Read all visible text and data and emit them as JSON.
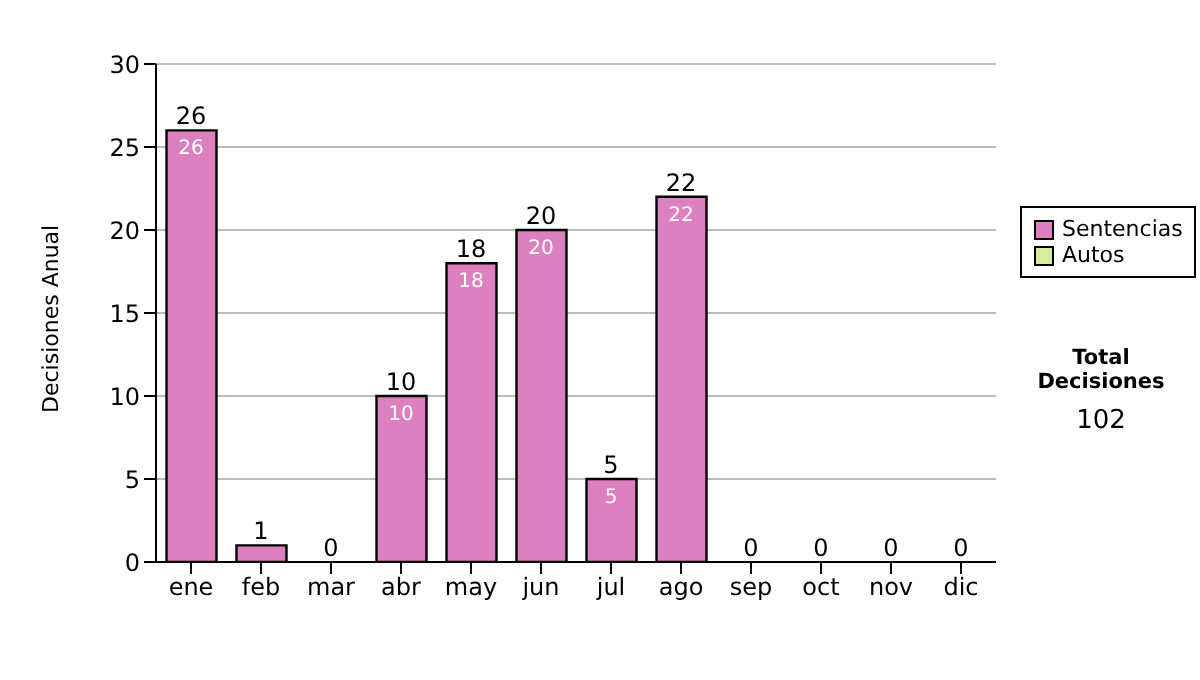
{
  "chart_data": {
    "type": "bar",
    "stacked": true,
    "ylabel": "Decisiones Anual",
    "categories": [
      "ene",
      "feb",
      "mar",
      "abr",
      "may",
      "jun",
      "jul",
      "ago",
      "sep",
      "oct",
      "nov",
      "dic"
    ],
    "series": [
      {
        "name": "Sentencias",
        "color": "#dd80c0",
        "values": [
          26,
          1,
          0,
          10,
          18,
          20,
          5,
          22,
          0,
          0,
          0,
          0
        ],
        "value_labels": [
          "26",
          null,
          null,
          "10",
          "18",
          "20",
          "5",
          "22",
          null,
          null,
          null,
          null
        ]
      },
      {
        "name": "Autos",
        "color": "#d4ec9c",
        "values": [
          0,
          0,
          0,
          0,
          0,
          0,
          0,
          0,
          0,
          0,
          0,
          0
        ]
      }
    ],
    "totals": [
      "26",
      "1",
      "0",
      "10",
      "18",
      "20",
      "5",
      "22",
      "0",
      "0",
      "0",
      "0"
    ],
    "ylim": [
      0,
      30
    ],
    "yticks": [
      0,
      5,
      10,
      15,
      20,
      25,
      30
    ],
    "grid": "y",
    "legend": "right",
    "annotations": [
      "Total Decisiones",
      "102"
    ]
  }
}
